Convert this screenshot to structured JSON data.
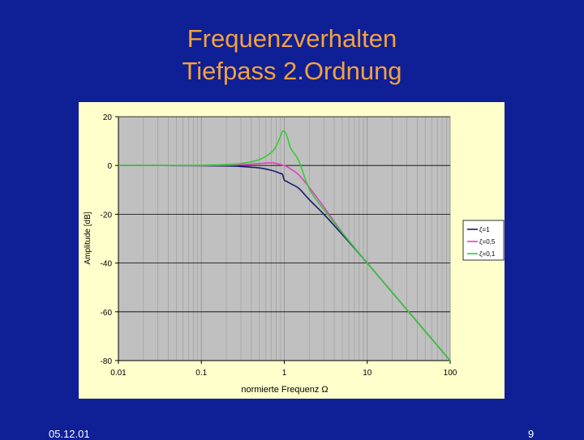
{
  "slide": {
    "title_line1": "Frequenzverhalten",
    "title_line2": "Tiefpass 2.Ordnung",
    "footer_date": "05.12.01",
    "page_number": "9"
  },
  "colors": {
    "background": "#0f1f96",
    "title": "#f4a23c",
    "chart_area": "#ffffcc",
    "plot_area": "#c0c0c0"
  },
  "chart_data": {
    "type": "line",
    "title": "",
    "xlabel": "normierte Frequenz Ω",
    "ylabel": "Amplitude [dB]",
    "x_scale": "log",
    "xlim": [
      0.01,
      100
    ],
    "ylim": [
      -80,
      20
    ],
    "x_ticks": [
      0.01,
      0.1,
      1,
      10,
      100
    ],
    "x_tick_labels": [
      "0.01",
      "0.1",
      "1",
      "10",
      "100"
    ],
    "y_ticks": [
      20,
      0,
      -20,
      -40,
      -60,
      -80
    ],
    "y_tick_labels": [
      "20",
      "0",
      "-20",
      "-40",
      "-60",
      "-80"
    ],
    "grid": true,
    "legend_position": "right",
    "x": [
      0.01,
      0.03,
      0.1,
      0.2,
      0.3,
      0.5,
      0.7,
      0.8,
      0.9,
      0.95,
      1.0,
      1.05,
      1.1,
      1.2,
      1.5,
      2,
      3,
      5,
      10,
      30,
      100
    ],
    "series": [
      {
        "name": "ζ=1",
        "color": "#1a1a6e",
        "values": [
          0.0,
          0.0,
          -0.1,
          -0.2,
          -0.4,
          -1.0,
          -2.0,
          -2.6,
          -3.3,
          -3.6,
          -6.0,
          -6.4,
          -6.8,
          -7.5,
          -9.4,
          -14.0,
          -20.0,
          -28.3,
          -40.0,
          -59.1,
          -80.0
        ]
      },
      {
        "name": "ζ=0,5",
        "color": "#e040c0",
        "values": [
          0.0,
          0.0,
          0.0,
          0.1,
          0.3,
          0.8,
          1.1,
          0.8,
          0.4,
          0.2,
          0.0,
          -0.3,
          -0.7,
          -1.5,
          -3.9,
          -9.0,
          -17.0,
          -27.5,
          -39.9,
          -59.1,
          -80.0
        ]
      },
      {
        "name": "ζ=0,1",
        "color": "#33cc33",
        "values": [
          0.0,
          0.0,
          0.1,
          0.4,
          0.8,
          2.4,
          5.4,
          8.0,
          12.0,
          14.0,
          14.0,
          13.0,
          11.0,
          7.0,
          1.8,
          -9.6,
          -18.1,
          -27.6,
          -40.0,
          -59.1,
          -80.0
        ]
      }
    ]
  }
}
